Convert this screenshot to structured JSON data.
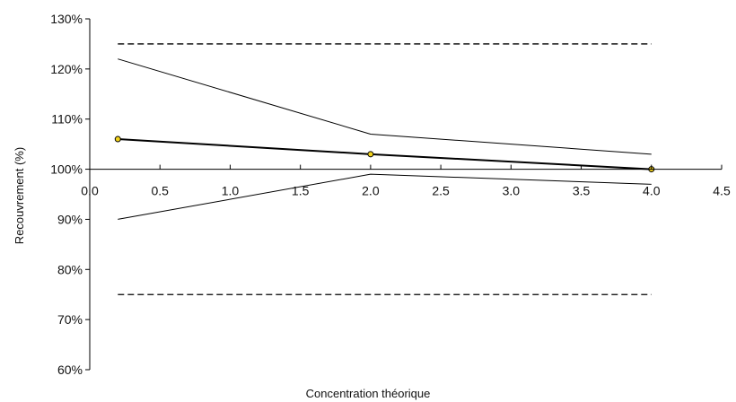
{
  "chart_data": {
    "type": "line",
    "xlabel": "Concentration théorique",
    "ylabel": "Recouvrement (%)",
    "xlim": [
      0.0,
      4.5
    ],
    "ylim": [
      60,
      130
    ],
    "x_ticks": [
      "0.0",
      "0.5",
      "1.0",
      "1.5",
      "2.0",
      "2.5",
      "3.0",
      "3.5",
      "4.0",
      "4.5"
    ],
    "y_ticks": [
      "60%",
      "70%",
      "80%",
      "90%",
      "100%",
      "110%",
      "120%",
      "130%"
    ],
    "grid": false,
    "series": [
      {
        "style": "bold-with-markers",
        "color": "#000000",
        "marker_color": "#f2d21b",
        "x": [
          0.2,
          2.0,
          4.0
        ],
        "y": [
          106,
          103,
          100
        ]
      },
      {
        "style": "thin",
        "color": "#000000",
        "x": [
          0.2,
          2.0,
          4.0
        ],
        "y": [
          122,
          107,
          103
        ]
      },
      {
        "style": "thin",
        "color": "#000000",
        "x": [
          0.2,
          2.0,
          4.0
        ],
        "y": [
          90,
          99,
          97
        ]
      },
      {
        "style": "dashed",
        "color": "#000000",
        "x": [
          0.2,
          4.0
        ],
        "y": [
          125,
          125
        ]
      },
      {
        "style": "dashed",
        "color": "#000000",
        "x": [
          0.2,
          4.0
        ],
        "y": [
          75,
          75
        ]
      }
    ]
  }
}
